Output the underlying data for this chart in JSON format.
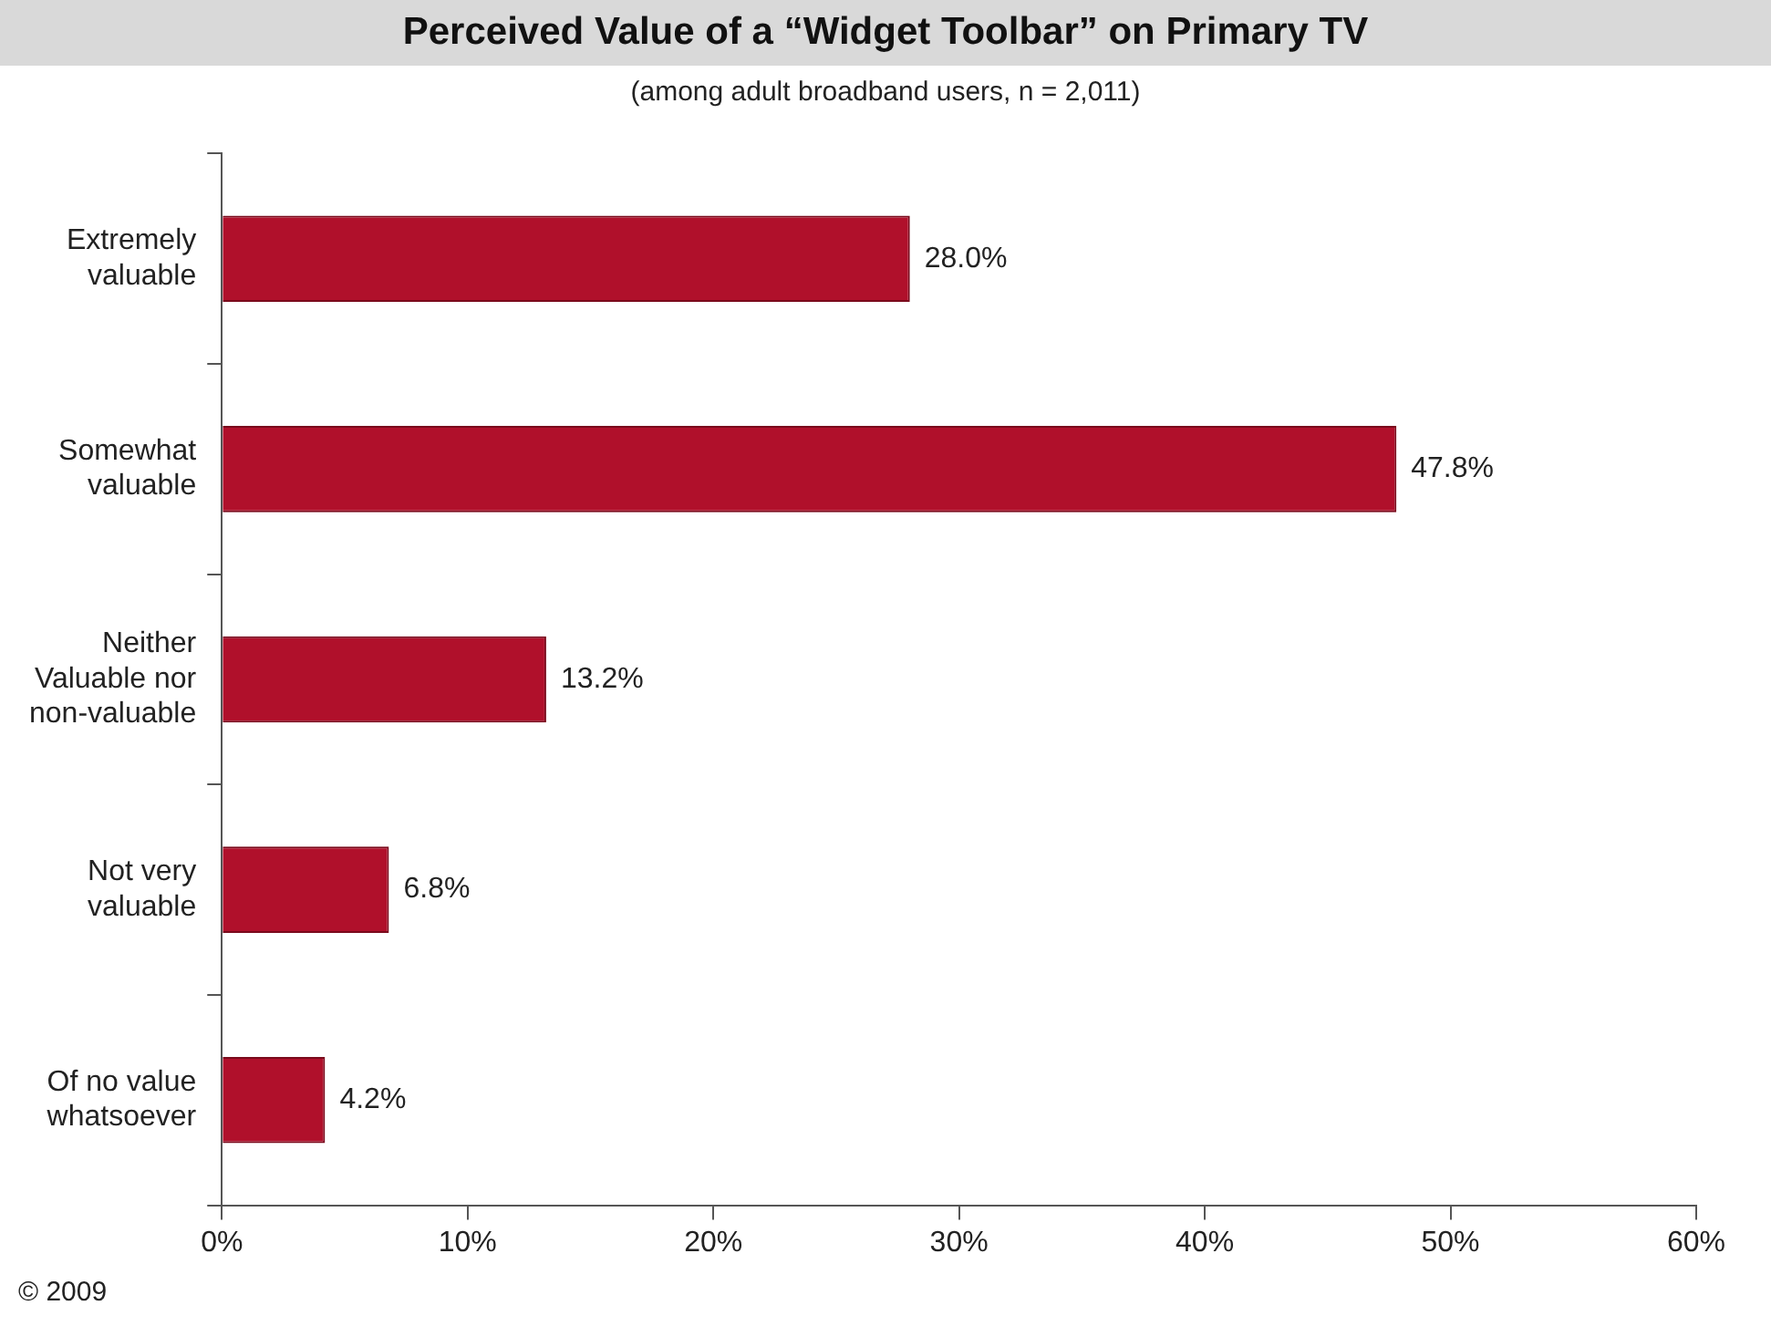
{
  "chart_data": {
    "type": "bar",
    "orientation": "horizontal",
    "title": "Perceived Value of a “Widget Toolbar” on Primary TV",
    "subtitle": "(among adult broadband users, n = 2,011)",
    "categories": [
      "Extremely valuable",
      "Somewhat valuable",
      "Neither Valuable nor non-valuable",
      "Not very valuable",
      "Of no value whatsoever"
    ],
    "values": [
      28.0,
      47.8,
      13.2,
      6.8,
      4.2
    ],
    "value_labels": [
      "28.0%",
      "47.8%",
      "13.2%",
      "6.8%",
      "4.2%"
    ],
    "color": "#b0102b",
    "xlim": [
      0,
      60
    ],
    "xticks": [
      {
        "value": 0,
        "label": "0%"
      },
      {
        "value": 10,
        "label": "10%"
      },
      {
        "value": 20,
        "label": "20%"
      },
      {
        "value": 30,
        "label": "30%"
      },
      {
        "value": 40,
        "label": "40%"
      },
      {
        "value": 50,
        "label": "50%"
      },
      {
        "value": 60,
        "label": "60%"
      }
    ],
    "grid": false,
    "legend": false,
    "annotations": [
      "© 2009"
    ]
  }
}
